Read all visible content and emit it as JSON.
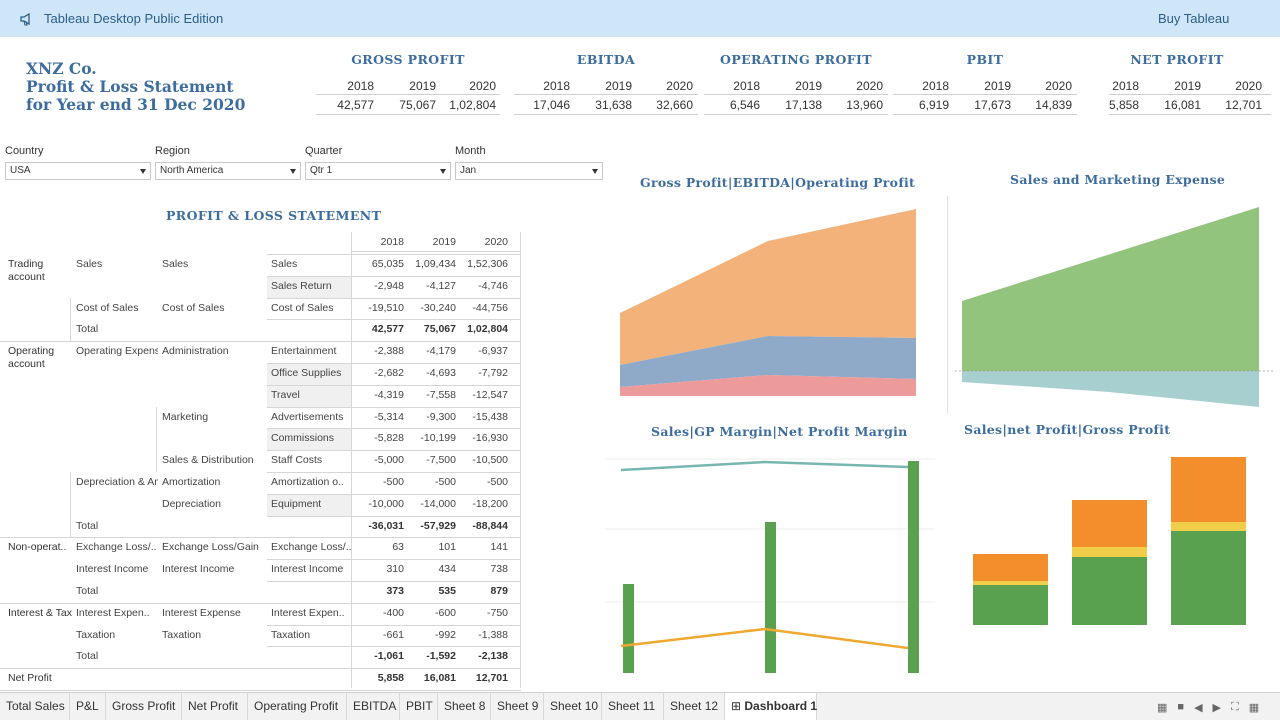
{
  "topbar": {
    "app_title": "Tableau Desktop Public Edition",
    "buy_label": "Buy Tableau"
  },
  "company": {
    "line1": "XNZ Co.",
    "line2": "Profit & Loss Statement",
    "line3": "for Year end 31 Dec 2020"
  },
  "kpis": [
    {
      "title": "GROSS PROFIT",
      "years": [
        "2018",
        "2019",
        "2020"
      ],
      "values": [
        "42,577",
        "75,067",
        "1,02,804"
      ]
    },
    {
      "title": "EBITDA",
      "years": [
        "2018",
        "2019",
        "2020"
      ],
      "values": [
        "17,046",
        "31,638",
        "32,660"
      ]
    },
    {
      "title": "OPERATING PROFIT",
      "years": [
        "2018",
        "2019",
        "2020"
      ],
      "values": [
        "6,546",
        "17,138",
        "13,960"
      ]
    },
    {
      "title": "PBIT",
      "years": [
        "2018",
        "2019",
        "2020"
      ],
      "values": [
        "6,919",
        "17,673",
        "14,839"
      ]
    },
    {
      "title": "NET PROFIT",
      "years": [
        "2018",
        "2019",
        "2020"
      ],
      "values": [
        "5,858",
        "16,081",
        "12,701"
      ]
    }
  ],
  "filters": [
    {
      "label": "Country",
      "value": "USA"
    },
    {
      "label": "Region",
      "value": "North America"
    },
    {
      "label": "Quarter",
      "value": "Qtr 1"
    },
    {
      "label": "Month",
      "value": "Jan"
    }
  ],
  "pl": {
    "title": "PROFIT & LOSS STATEMENT",
    "years": [
      "2018",
      "2019",
      "2020"
    ],
    "groups": {
      "trading": "Trading account",
      "operating": "Operating account",
      "nonop": "Non-operat..",
      "interest": "Interest & Tax",
      "net": "Net Profit"
    },
    "rows": [
      {
        "c2": "Sales",
        "c3": "Sales",
        "c4": "Sales",
        "v": [
          "65,035",
          "1,09,434",
          "1,52,306"
        ]
      },
      {
        "c2": "",
        "c3": "",
        "c4": "Sales Return",
        "v": [
          "-2,948",
          "-4,127",
          "-4,746"
        ]
      },
      {
        "c2": "Cost of Sales",
        "c3": "Cost of Sales",
        "c4": "Cost of Sales",
        "v": [
          "-19,510",
          "-30,240",
          "-44,756"
        ]
      },
      {
        "c2": "Total",
        "c3": "",
        "c4": "",
        "v": [
          "42,577",
          "75,067",
          "1,02,804"
        ]
      },
      {
        "c2": "Operating Expenses",
        "c3": "Administration",
        "c4": "Entertainment",
        "v": [
          "-2,388",
          "-4,179",
          "-6,937"
        ]
      },
      {
        "c2": "",
        "c3": "",
        "c4": "Office Supplies",
        "v": [
          "-2,682",
          "-4,693",
          "-7,792"
        ]
      },
      {
        "c2": "",
        "c3": "",
        "c4": "Travel",
        "v": [
          "-4,319",
          "-7,558",
          "-12,547"
        ]
      },
      {
        "c2": "",
        "c3": "Marketing",
        "c4": "Advertisements",
        "v": [
          "-5,314",
          "-9,300",
          "-15,438"
        ]
      },
      {
        "c2": "",
        "c3": "",
        "c4": "Commissions",
        "v": [
          "-5,828",
          "-10,199",
          "-16,930"
        ]
      },
      {
        "c2": "",
        "c3": "Sales & Distribution",
        "c4": "Staff Costs",
        "v": [
          "-5,000",
          "-7,500",
          "-10,500"
        ]
      },
      {
        "c2": "Depreciation & Amortization",
        "c3": "Amortization",
        "c4": "Amortization o..",
        "v": [
          "-500",
          "-500",
          "-500"
        ]
      },
      {
        "c2": "",
        "c3": "Depreciation",
        "c4": "Equipment",
        "v": [
          "-10,000",
          "-14,000",
          "-18,200"
        ]
      },
      {
        "c2": "Total",
        "c3": "",
        "c4": "",
        "v": [
          "-36,031",
          "-57,929",
          "-88,844"
        ]
      },
      {
        "c2": "Exchange Loss/..",
        "c3": "Exchange Loss/Gain",
        "c4": "Exchange Loss/..",
        "v": [
          "63",
          "101",
          "141"
        ]
      },
      {
        "c2": "Interest Income",
        "c3": "Interest Income",
        "c4": "Interest Income",
        "v": [
          "310",
          "434",
          "738"
        ]
      },
      {
        "c2": "Total",
        "c3": "",
        "c4": "",
        "v": [
          "373",
          "535",
          "879"
        ]
      },
      {
        "c2": "Interest Expen..",
        "c3": "Interest Expense",
        "c4": "Interest Expen..",
        "v": [
          "-400",
          "-600",
          "-750"
        ]
      },
      {
        "c2": "Taxation",
        "c3": "Taxation",
        "c4": "Taxation",
        "v": [
          "-661",
          "-992",
          "-1,388"
        ]
      },
      {
        "c2": "Total",
        "c3": "",
        "c4": "",
        "v": [
          "-1,061",
          "-1,592",
          "-2,138"
        ]
      },
      {
        "c2": "",
        "c3": "",
        "c4": "",
        "v": [
          "5,858",
          "16,081",
          "12,701"
        ]
      }
    ]
  },
  "charts": {
    "gp_title": "Gross Profit|EBITDA|Operating Profit",
    "sme_title": "Sales and Marketing Expense",
    "margin_title": "Sales|GP Margin|Net Profit Margin",
    "stack_title": "Sales|net Profit|Gross Profit"
  },
  "colors": {
    "orange": "#f2b27a",
    "blue": "#8fa9c8",
    "red": "#ec9a9a",
    "green": "#93c47d",
    "teal": "#a8cfd0",
    "bar_green": "#59a14f",
    "bar_orange": "#f28e2b",
    "bar_yellow": "#f1ce4a",
    "title_blue": "#3c6d9e"
  },
  "tabs": [
    "Total Sales",
    "P&L",
    "Gross Profit",
    "Net Profit",
    "Operating Profit",
    "EBITDA",
    "PBIT",
    "Sheet 8",
    "Sheet 9",
    "Sheet 10",
    "Sheet 11",
    "Sheet 12",
    "Dashboard 1"
  ],
  "active_tab": "Dashboard 1"
}
